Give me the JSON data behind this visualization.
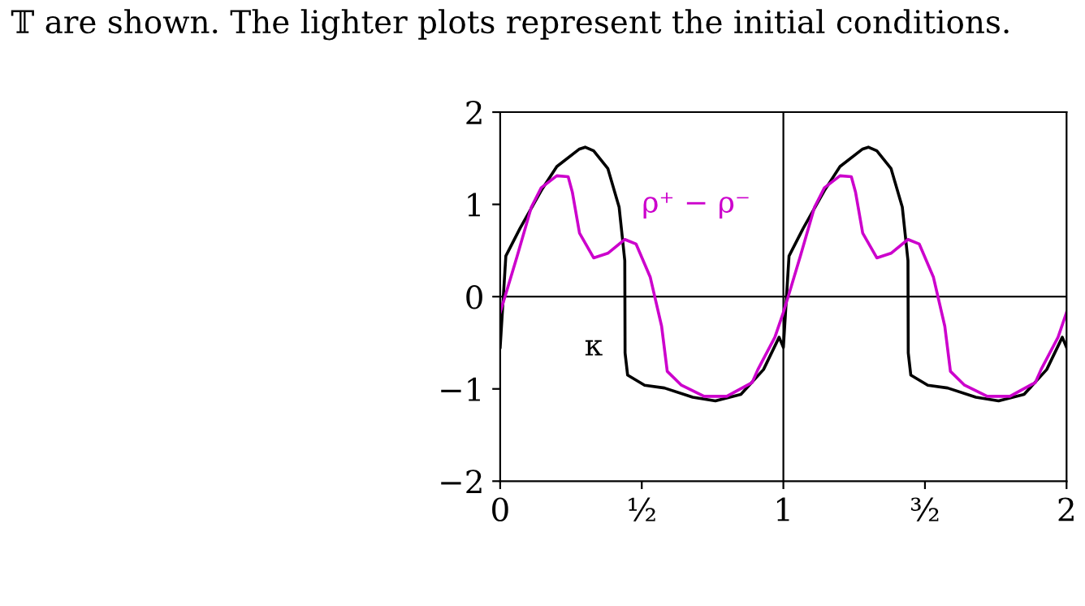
{
  "chart_data": {
    "type": "line",
    "annotations": [
      "𝕋 are shown. The lighter plots represent the initial conditions."
    ],
    "xlim": [
      0,
      2
    ],
    "ylim": [
      -2,
      2
    ],
    "xticks": [
      0,
      {
        "value": 0.5,
        "label": "½"
      },
      1,
      {
        "value": 1.5,
        "label": "³⁄₂"
      },
      2
    ],
    "yticks": [
      {
        "value": -2,
        "label": "−2"
      },
      {
        "value": -1,
        "label": "−1"
      },
      0,
      1,
      2
    ],
    "grid": false,
    "legend": false,
    "marker": "none",
    "line_style": "solid",
    "ref_lines": [
      {
        "axis": "y",
        "value": 0,
        "color": "#000000"
      },
      {
        "axis": "x",
        "value": 1,
        "color": "#000000"
      }
    ],
    "series": [
      {
        "name": "κ",
        "color": "#000000",
        "x": [
          0,
          0.02,
          0.07,
          0.145,
          0.2,
          0.28,
          0.3,
          0.33,
          0.38,
          0.42,
          0.44,
          0.441,
          0.45,
          0.51,
          0.58,
          0.68,
          0.76,
          0.85,
          0.93,
          0.985,
          1.0,
          1.02,
          1.07,
          1.145,
          1.2,
          1.28,
          1.3,
          1.33,
          1.38,
          1.42,
          1.44,
          1.441,
          1.45,
          1.51,
          1.58,
          1.68,
          1.76,
          1.85,
          1.93,
          1.985,
          2.0
        ],
        "values": [
          -0.55,
          0.44,
          0.74,
          1.15,
          1.41,
          1.6,
          1.62,
          1.58,
          1.39,
          0.97,
          0.39,
          -0.61,
          -0.85,
          -0.96,
          -0.99,
          -1.09,
          -1.13,
          -1.06,
          -0.79,
          -0.44,
          -0.55,
          0.44,
          0.74,
          1.15,
          1.41,
          1.6,
          1.62,
          1.58,
          1.39,
          0.97,
          0.39,
          -0.61,
          -0.85,
          -0.96,
          -0.99,
          -1.09,
          -1.13,
          -1.06,
          -0.79,
          -0.44,
          -0.55
        ]
      },
      {
        "name": "ρ⁺ − ρ⁻",
        "color": "#cc00cc",
        "x": [
          0,
          0.02,
          0.06,
          0.11,
          0.145,
          0.2,
          0.24,
          0.255,
          0.28,
          0.33,
          0.38,
          0.44,
          0.48,
          0.53,
          0.57,
          0.59,
          0.64,
          0.72,
          0.8,
          0.89,
          0.91,
          0.97,
          1.0,
          1.02,
          1.06,
          1.11,
          1.145,
          1.2,
          1.24,
          1.255,
          1.28,
          1.33,
          1.38,
          1.44,
          1.48,
          1.53,
          1.57,
          1.59,
          1.64,
          1.72,
          1.8,
          1.89,
          1.91,
          1.97,
          2.0
        ],
        "values": [
          -0.17,
          0.03,
          0.44,
          0.97,
          1.18,
          1.31,
          1.3,
          1.13,
          0.69,
          0.42,
          0.47,
          0.62,
          0.57,
          0.21,
          -0.32,
          -0.81,
          -0.96,
          -1.08,
          -1.08,
          -0.93,
          -0.79,
          -0.44,
          -0.17,
          0.03,
          0.44,
          0.97,
          1.18,
          1.31,
          1.3,
          1.13,
          0.69,
          0.42,
          0.47,
          0.62,
          0.57,
          0.21,
          -0.32,
          -0.81,
          -0.96,
          -1.08,
          -1.08,
          -0.93,
          -0.79,
          -0.44,
          -0.17
        ]
      }
    ]
  }
}
